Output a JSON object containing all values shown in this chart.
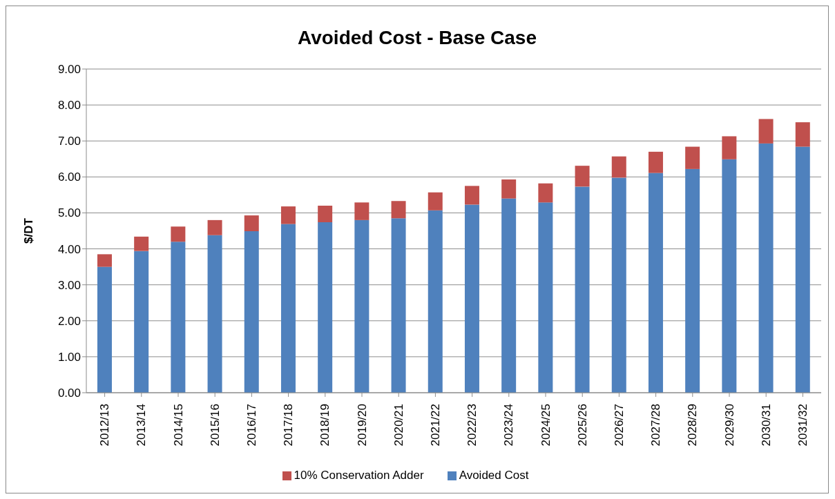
{
  "chart_data": {
    "type": "bar",
    "title": "Avoided Cost - Base Case",
    "ylabel": "$/DT",
    "stacked": true,
    "grid": "y",
    "legend": "bottom",
    "categories": [
      "2012/13",
      "2013/14",
      "2014/15",
      "2015/16",
      "2016/17",
      "2017/18",
      "2018/19",
      "2019/20",
      "2020/21",
      "2021/22",
      "2022/23",
      "2023/24",
      "2024/25",
      "2025/26",
      "2026/27",
      "2027/28",
      "2028/29",
      "2029/30",
      "2030/31",
      "2031/32"
    ],
    "ylim": [
      0,
      9
    ],
    "yticks": [
      {
        "value": 0,
        "label": "0.00"
      },
      {
        "value": 1,
        "label": "1.00"
      },
      {
        "value": 2,
        "label": "2.00"
      },
      {
        "value": 3,
        "label": "3.00"
      },
      {
        "value": 4,
        "label": "4.00"
      },
      {
        "value": 5,
        "label": "5.00"
      },
      {
        "value": 6,
        "label": "6.00"
      },
      {
        "value": 7,
        "label": "7.00"
      },
      {
        "value": 8,
        "label": "8.00"
      },
      {
        "value": 9,
        "label": "9.00"
      }
    ],
    "series": [
      {
        "name": "Avoided Cost",
        "color": "#4f81bd",
        "values": [
          3.5,
          3.94,
          4.2,
          4.38,
          4.49,
          4.69,
          4.74,
          4.8,
          4.85,
          5.07,
          5.23,
          5.4,
          5.29,
          5.73,
          5.98,
          6.11,
          6.22,
          6.49,
          6.93,
          6.84
        ]
      },
      {
        "name": "10% Conservation Adder",
        "color": "#c0504d",
        "values": [
          0.35,
          0.4,
          0.42,
          0.42,
          0.44,
          0.49,
          0.46,
          0.49,
          0.48,
          0.5,
          0.52,
          0.53,
          0.53,
          0.58,
          0.59,
          0.59,
          0.62,
          0.64,
          0.68,
          0.68
        ]
      }
    ]
  }
}
